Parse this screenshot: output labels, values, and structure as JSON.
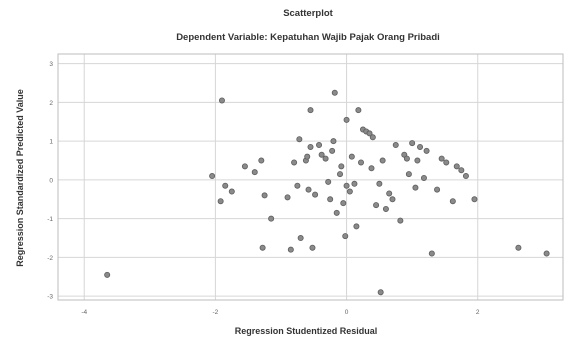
{
  "chart_data": {
    "type": "scatter",
    "title": "Scatterplot",
    "subtitle": "Dependent Variable: Kepatuhan Wajib Pajak Orang Pribadi",
    "xlabel": "Regression Studentized Residual",
    "ylabel": "Regression Standardized Predicted Value",
    "xlim": [
      -4.4,
      3.3
    ],
    "ylim": [
      -3.1,
      3.25
    ],
    "xticks": [
      -4,
      -2,
      0,
      2
    ],
    "yticks": [
      -3,
      -2,
      -1,
      0,
      1,
      2,
      3
    ],
    "xtick_labels": [
      "-4",
      "-2",
      "0",
      "2"
    ],
    "ytick_labels": [
      "-3",
      "-2",
      "-1",
      "0",
      "1",
      "2",
      "3"
    ],
    "grid": true,
    "points": [
      {
        "x": -3.65,
        "y": -2.45
      },
      {
        "x": -2.05,
        "y": 0.1
      },
      {
        "x": -1.9,
        "y": 2.05
      },
      {
        "x": -1.92,
        "y": -0.55
      },
      {
        "x": -1.85,
        "y": -0.15
      },
      {
        "x": -1.75,
        "y": -0.3
      },
      {
        "x": -1.55,
        "y": 0.35
      },
      {
        "x": -1.4,
        "y": 0.2
      },
      {
        "x": -1.3,
        "y": 0.5
      },
      {
        "x": -1.25,
        "y": -0.4
      },
      {
        "x": -1.28,
        "y": -1.75
      },
      {
        "x": -1.15,
        "y": -1.0
      },
      {
        "x": -0.9,
        "y": -0.45
      },
      {
        "x": -0.85,
        "y": -1.8
      },
      {
        "x": -0.8,
        "y": 0.45
      },
      {
        "x": -0.75,
        "y": -0.15
      },
      {
        "x": -0.72,
        "y": 1.05
      },
      {
        "x": -0.7,
        "y": -1.5
      },
      {
        "x": -0.62,
        "y": 0.5
      },
      {
        "x": -0.6,
        "y": 0.6
      },
      {
        "x": -0.58,
        "y": -0.25
      },
      {
        "x": -0.55,
        "y": 1.8
      },
      {
        "x": -0.55,
        "y": 0.85
      },
      {
        "x": -0.52,
        "y": -1.75
      },
      {
        "x": -0.48,
        "y": -0.38
      },
      {
        "x": -0.42,
        "y": 0.9
      },
      {
        "x": -0.38,
        "y": 0.65
      },
      {
        "x": -0.32,
        "y": 0.55
      },
      {
        "x": -0.28,
        "y": -0.05
      },
      {
        "x": -0.25,
        "y": -0.5
      },
      {
        "x": -0.22,
        "y": 0.75
      },
      {
        "x": -0.2,
        "y": 1.0
      },
      {
        "x": -0.18,
        "y": 2.25
      },
      {
        "x": -0.15,
        "y": -0.85
      },
      {
        "x": -0.1,
        "y": 0.15
      },
      {
        "x": -0.08,
        "y": 0.35
      },
      {
        "x": -0.05,
        "y": -0.6
      },
      {
        "x": -0.02,
        "y": -1.45
      },
      {
        "x": 0.0,
        "y": 1.55
      },
      {
        "x": 0.0,
        "y": -0.15
      },
      {
        "x": 0.05,
        "y": -0.3
      },
      {
        "x": 0.08,
        "y": 0.6
      },
      {
        "x": 0.12,
        "y": -0.1
      },
      {
        "x": 0.15,
        "y": -1.2
      },
      {
        "x": 0.18,
        "y": 1.8
      },
      {
        "x": 0.22,
        "y": 0.45
      },
      {
        "x": 0.25,
        "y": 1.3
      },
      {
        "x": 0.3,
        "y": 1.25
      },
      {
        "x": 0.35,
        "y": 1.2
      },
      {
        "x": 0.38,
        "y": 0.3
      },
      {
        "x": 0.4,
        "y": 1.1
      },
      {
        "x": 0.45,
        "y": -0.65
      },
      {
        "x": 0.5,
        "y": -0.1
      },
      {
        "x": 0.52,
        "y": -2.9
      },
      {
        "x": 0.55,
        "y": 0.5
      },
      {
        "x": 0.6,
        "y": -0.75
      },
      {
        "x": 0.65,
        "y": -0.35
      },
      {
        "x": 0.7,
        "y": -0.5
      },
      {
        "x": 0.75,
        "y": 0.9
      },
      {
        "x": 0.82,
        "y": -1.05
      },
      {
        "x": 0.88,
        "y": 0.65
      },
      {
        "x": 0.92,
        "y": 0.55
      },
      {
        "x": 0.95,
        "y": 0.15
      },
      {
        "x": 1.0,
        "y": 0.95
      },
      {
        "x": 1.05,
        "y": -0.2
      },
      {
        "x": 1.08,
        "y": 0.5
      },
      {
        "x": 1.12,
        "y": 0.85
      },
      {
        "x": 1.18,
        "y": 0.05
      },
      {
        "x": 1.22,
        "y": 0.75
      },
      {
        "x": 1.3,
        "y": -1.9
      },
      {
        "x": 1.38,
        "y": -0.25
      },
      {
        "x": 1.45,
        "y": 0.55
      },
      {
        "x": 1.52,
        "y": 0.45
      },
      {
        "x": 1.62,
        "y": -0.55
      },
      {
        "x": 1.68,
        "y": 0.35
      },
      {
        "x": 1.75,
        "y": 0.25
      },
      {
        "x": 1.82,
        "y": 0.1
      },
      {
        "x": 1.95,
        "y": -0.5
      },
      {
        "x": 2.62,
        "y": -1.75
      },
      {
        "x": 3.05,
        "y": -1.9
      }
    ]
  }
}
